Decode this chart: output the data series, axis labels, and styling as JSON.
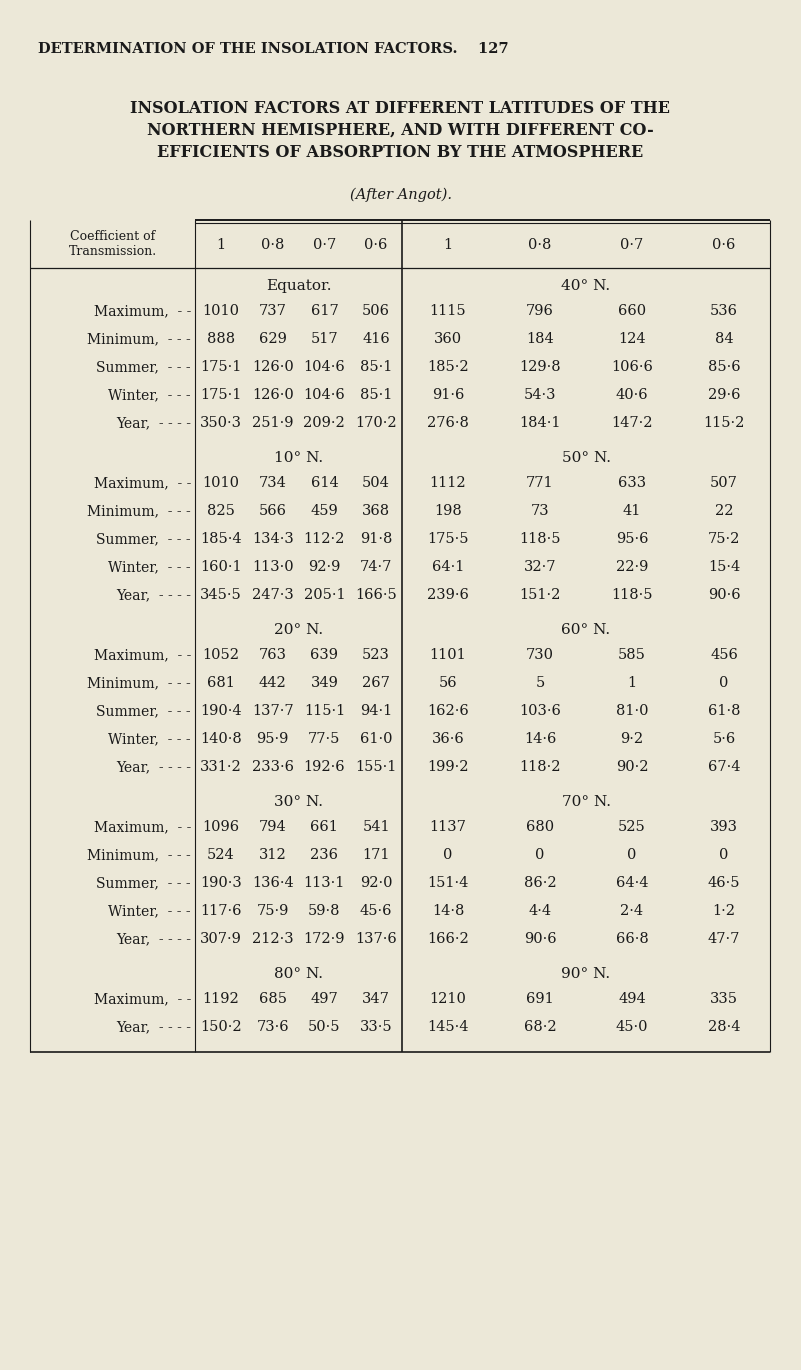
{
  "page_header": "DETERMINATION OF THE INSOLATION FACTORS.    127",
  "title_lines": [
    "INSOLATION FACTORS AT DIFFERENT LATITUDES OF THE",
    "NORTHERN HEMISPHERE, AND WITH DIFFERENT CO-",
    "EFFICIENTS OF ABSORPTION BY THE ATMOSPHERE"
  ],
  "subtitle": "(After Angot).",
  "bg_color": "#ece8d8",
  "text_color": "#1a1a1a",
  "col_header_label": "Coefficient of\nTransmission.",
  "col_headers": [
    "1",
    "0·8",
    "0·7",
    "0·6",
    "1",
    "0·8",
    "0·7",
    "0·6"
  ],
  "sections": [
    {
      "left_label": "Equator.",
      "right_label": "40° N.",
      "rows": [
        {
          "label": "Maximum,  - -",
          "left": [
            "1010",
            "737",
            "617",
            "506"
          ],
          "right": [
            "1115",
            "796",
            "660",
            "536"
          ]
        },
        {
          "label": "Minimum,  - - -",
          "left": [
            "888",
            "629",
            "517",
            "416"
          ],
          "right": [
            "360",
            "184",
            "124",
            "84"
          ]
        },
        {
          "label": "Summer,  - - -",
          "left": [
            "175·1",
            "126·0",
            "104·6",
            "85·1"
          ],
          "right": [
            "185·2",
            "129·8",
            "106·6",
            "85·6"
          ]
        },
        {
          "label": "Winter,  - - -",
          "left": [
            "175·1",
            "126·0",
            "104·6",
            "85·1"
          ],
          "right": [
            "91·6",
            "54·3",
            "40·6",
            "29·6"
          ]
        },
        {
          "label": "Year,  - - - -",
          "left": [
            "350·3",
            "251·9",
            "209·2",
            "170·2"
          ],
          "right": [
            "276·8",
            "184·1",
            "147·2",
            "115·2"
          ]
        }
      ]
    },
    {
      "left_label": "10° N.",
      "right_label": "50° N.",
      "rows": [
        {
          "label": "Maximum,  - -",
          "left": [
            "1010",
            "734",
            "614",
            "504"
          ],
          "right": [
            "1112",
            "771",
            "633",
            "507"
          ]
        },
        {
          "label": "Minimum,  - - -",
          "left": [
            "825",
            "566",
            "459",
            "368"
          ],
          "right": [
            "198",
            "73",
            "41",
            "22"
          ]
        },
        {
          "label": "Summer,  - - -",
          "left": [
            "185·4",
            "134·3",
            "112·2",
            "91·8"
          ],
          "right": [
            "175·5",
            "118·5",
            "95·6",
            "75·2"
          ]
        },
        {
          "label": "Winter,  - - -",
          "left": [
            "160·1",
            "113·0",
            "92·9",
            "74·7"
          ],
          "right": [
            "64·1",
            "32·7",
            "22·9",
            "15·4"
          ]
        },
        {
          "label": "Year,  - - - -",
          "left": [
            "345·5",
            "247·3",
            "205·1",
            "166·5"
          ],
          "right": [
            "239·6",
            "151·2",
            "118·5",
            "90·6"
          ]
        }
      ]
    },
    {
      "left_label": "20° N.",
      "right_label": "60° N.",
      "rows": [
        {
          "label": "Maximum,  - -",
          "left": [
            "1052",
            "763",
            "639",
            "523"
          ],
          "right": [
            "1101",
            "730",
            "585",
            "456"
          ]
        },
        {
          "label": "Minimum,  - - -",
          "left": [
            "681",
            "442",
            "349",
            "267"
          ],
          "right": [
            "56",
            "5",
            "1",
            "0"
          ]
        },
        {
          "label": "Summer,  - - -",
          "left": [
            "190·4",
            "137·7",
            "115·1",
            "94·1"
          ],
          "right": [
            "162·6",
            "103·6",
            "81·0",
            "61·8"
          ]
        },
        {
          "label": "Winter,  - - -",
          "left": [
            "140·8",
            "95·9",
            "77·5",
            "61·0"
          ],
          "right": [
            "36·6",
            "14·6",
            "9·2",
            "5·6"
          ]
        },
        {
          "label": "Year,  - - - -",
          "left": [
            "331·2",
            "233·6",
            "192·6",
            "155·1"
          ],
          "right": [
            "199·2",
            "118·2",
            "90·2",
            "67·4"
          ]
        }
      ]
    },
    {
      "left_label": "30° N.",
      "right_label": "70° N.",
      "rows": [
        {
          "label": "Maximum,  - -",
          "left": [
            "1096",
            "794",
            "661",
            "541"
          ],
          "right": [
            "1137",
            "680",
            "525",
            "393"
          ]
        },
        {
          "label": "Minimum,  - - -",
          "left": [
            "524",
            "312",
            "236",
            "171"
          ],
          "right": [
            "0",
            "0",
            "0",
            "0"
          ]
        },
        {
          "label": "Summer,  - - -",
          "left": [
            "190·3",
            "136·4",
            "113·1",
            "92·0"
          ],
          "right": [
            "151·4",
            "86·2",
            "64·4",
            "46·5"
          ]
        },
        {
          "label": "Winter,  - - -",
          "left": [
            "117·6",
            "75·9",
            "59·8",
            "45·6"
          ],
          "right": [
            "14·8",
            "4·4",
            "2·4",
            "1·2"
          ]
        },
        {
          "label": "Year,  - - - -",
          "left": [
            "307·9",
            "212·3",
            "172·9",
            "137·6"
          ],
          "right": [
            "166·2",
            "90·6",
            "66·8",
            "47·7"
          ]
        }
      ]
    },
    {
      "left_label": "80° N.",
      "right_label": "90° N.",
      "rows": [
        {
          "label": "Maximum,  - -",
          "left": [
            "1192",
            "685",
            "497",
            "347"
          ],
          "right": [
            "1210",
            "691",
            "494",
            "335"
          ]
        },
        {
          "label": "Year,  - - - -",
          "left": [
            "150·2",
            "73·6",
            "50·5",
            "33·5"
          ],
          "right": [
            "145·4",
            "68·2",
            "45·0",
            "28·4"
          ]
        }
      ]
    }
  ]
}
